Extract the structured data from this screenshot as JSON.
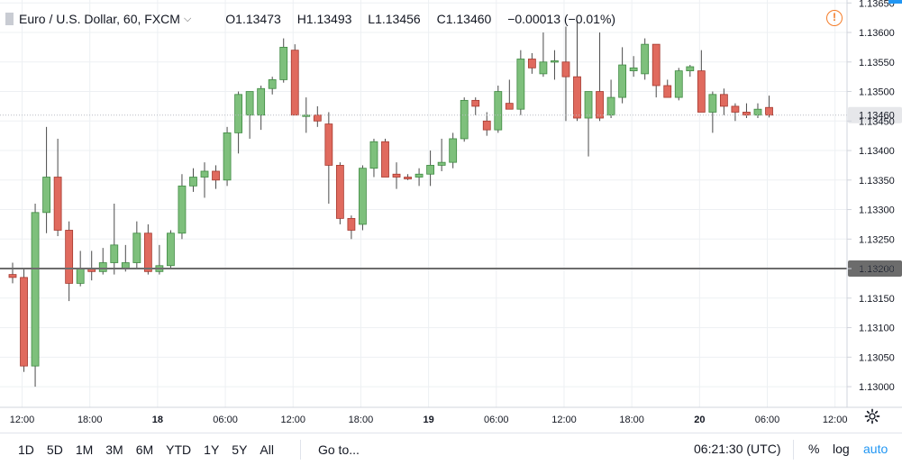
{
  "header": {
    "symbol": "Euro / U.S. Dollar, 60, FXCM",
    "open": "O1.13473",
    "high": "H1.13493",
    "low": "L1.13456",
    "close": "C1.13460",
    "change": "−0.00013 (−0.01%)"
  },
  "bottom_bar": {
    "ranges": [
      "1D",
      "5D",
      "1M",
      "3M",
      "6M",
      "YTD",
      "1Y",
      "5Y",
      "All"
    ],
    "goto": "Go to...",
    "clock": "06:21:30 (UTC)",
    "percent": "%",
    "log": "log",
    "auto": "auto"
  },
  "colors": {
    "up": "#7ec07c",
    "down": "#e06a5e",
    "grid": "#edf0f3",
    "axis": "#d1d4dc",
    "hline": "#6c6c6c"
  },
  "chart_data": {
    "type": "candlestick",
    "ylim": [
      1.12965,
      1.13655
    ],
    "y_ticks": [
      "1.13650",
      "1.13600",
      "1.13550",
      "1.13500",
      "1.13450",
      "1.13400",
      "1.13350",
      "1.13300",
      "1.13250",
      "1.13200",
      "1.13150",
      "1.13100",
      "1.13050",
      "1.13000"
    ],
    "x_ticks": [
      "12:00",
      "18:00",
      "18",
      "06:00",
      "12:00",
      "18:00",
      "19",
      "06:00",
      "12:00",
      "18:00",
      "20",
      "06:00",
      "12:00"
    ],
    "current_price": "1.13460",
    "horizontal_line": "1.13200",
    "candles": [
      {
        "o": 1.1319,
        "h": 1.1321,
        "l": 1.13175,
        "c": 1.13185
      },
      {
        "o": 1.13185,
        "h": 1.132,
        "l": 1.13025,
        "c": 1.13035
      },
      {
        "o": 1.13035,
        "h": 1.1331,
        "l": 1.13,
        "c": 1.13295
      },
      {
        "o": 1.13295,
        "h": 1.1344,
        "l": 1.1326,
        "c": 1.13355
      },
      {
        "o": 1.13355,
        "h": 1.1342,
        "l": 1.13255,
        "c": 1.13265
      },
      {
        "o": 1.13265,
        "h": 1.1328,
        "l": 1.13145,
        "c": 1.13175
      },
      {
        "o": 1.13175,
        "h": 1.1323,
        "l": 1.1317,
        "c": 1.132
      },
      {
        "o": 1.132,
        "h": 1.1323,
        "l": 1.1318,
        "c": 1.13195
      },
      {
        "o": 1.13195,
        "h": 1.13235,
        "l": 1.1319,
        "c": 1.1321
      },
      {
        "o": 1.1321,
        "h": 1.1331,
        "l": 1.1319,
        "c": 1.1324
      },
      {
        "o": 1.132,
        "h": 1.1324,
        "l": 1.13195,
        "c": 1.1321
      },
      {
        "o": 1.1321,
        "h": 1.1328,
        "l": 1.132,
        "c": 1.1326
      },
      {
        "o": 1.1326,
        "h": 1.13275,
        "l": 1.1319,
        "c": 1.13195
      },
      {
        "o": 1.13195,
        "h": 1.1324,
        "l": 1.1319,
        "c": 1.13205
      },
      {
        "o": 1.13205,
        "h": 1.13265,
        "l": 1.132,
        "c": 1.1326
      },
      {
        "o": 1.1326,
        "h": 1.1336,
        "l": 1.1325,
        "c": 1.1334
      },
      {
        "o": 1.1334,
        "h": 1.1337,
        "l": 1.1333,
        "c": 1.13355
      },
      {
        "o": 1.13355,
        "h": 1.1338,
        "l": 1.1332,
        "c": 1.13365
      },
      {
        "o": 1.13365,
        "h": 1.13375,
        "l": 1.13335,
        "c": 1.1335
      },
      {
        "o": 1.1335,
        "h": 1.1344,
        "l": 1.1334,
        "c": 1.1343
      },
      {
        "o": 1.1343,
        "h": 1.135,
        "l": 1.13395,
        "c": 1.13495
      },
      {
        "o": 1.1346,
        "h": 1.135,
        "l": 1.1342,
        "c": 1.135
      },
      {
        "o": 1.1346,
        "h": 1.1351,
        "l": 1.13435,
        "c": 1.13505
      },
      {
        "o": 1.13505,
        "h": 1.13525,
        "l": 1.13495,
        "c": 1.1352
      },
      {
        "o": 1.1352,
        "h": 1.1359,
        "l": 1.13515,
        "c": 1.13575
      },
      {
        "o": 1.1357,
        "h": 1.1358,
        "l": 1.13465,
        "c": 1.1346
      },
      {
        "o": 1.1346,
        "h": 1.1349,
        "l": 1.1343,
        "c": 1.1346
      },
      {
        "o": 1.1346,
        "h": 1.13475,
        "l": 1.1344,
        "c": 1.1345
      },
      {
        "o": 1.13445,
        "h": 1.13465,
        "l": 1.1331,
        "c": 1.13375
      },
      {
        "o": 1.13375,
        "h": 1.1338,
        "l": 1.13275,
        "c": 1.13285
      },
      {
        "o": 1.13285,
        "h": 1.1329,
        "l": 1.1325,
        "c": 1.13265
      },
      {
        "o": 1.13275,
        "h": 1.13375,
        "l": 1.13265,
        "c": 1.1337
      },
      {
        "o": 1.1337,
        "h": 1.1342,
        "l": 1.13355,
        "c": 1.13415
      },
      {
        "o": 1.13415,
        "h": 1.1342,
        "l": 1.13355,
        "c": 1.13355
      },
      {
        "o": 1.1336,
        "h": 1.1338,
        "l": 1.13335,
        "c": 1.13355
      },
      {
        "o": 1.13355,
        "h": 1.1336,
        "l": 1.1335,
        "c": 1.13352
      },
      {
        "o": 1.13355,
        "h": 1.1337,
        "l": 1.1334,
        "c": 1.1336
      },
      {
        "o": 1.1336,
        "h": 1.134,
        "l": 1.1334,
        "c": 1.13375
      },
      {
        "o": 1.13375,
        "h": 1.1342,
        "l": 1.13365,
        "c": 1.1338
      },
      {
        "o": 1.1338,
        "h": 1.1343,
        "l": 1.1337,
        "c": 1.1342
      },
      {
        "o": 1.1342,
        "h": 1.1349,
        "l": 1.13415,
        "c": 1.13485
      },
      {
        "o": 1.13485,
        "h": 1.1349,
        "l": 1.1346,
        "c": 1.13475
      },
      {
        "o": 1.1345,
        "h": 1.13465,
        "l": 1.13425,
        "c": 1.13435
      },
      {
        "o": 1.13435,
        "h": 1.1351,
        "l": 1.1343,
        "c": 1.135
      },
      {
        "o": 1.1348,
        "h": 1.1352,
        "l": 1.1347,
        "c": 1.1347
      },
      {
        "o": 1.1347,
        "h": 1.1357,
        "l": 1.1346,
        "c": 1.13555
      },
      {
        "o": 1.13555,
        "h": 1.13565,
        "l": 1.1353,
        "c": 1.1354
      },
      {
        "o": 1.1353,
        "h": 1.136,
        "l": 1.13525,
        "c": 1.1355
      },
      {
        "o": 1.1355,
        "h": 1.1357,
        "l": 1.1352,
        "c": 1.13552
      },
      {
        "o": 1.1355,
        "h": 1.1361,
        "l": 1.1345,
        "c": 1.13525
      },
      {
        "o": 1.13525,
        "h": 1.1362,
        "l": 1.1345,
        "c": 1.13455
      },
      {
        "o": 1.13455,
        "h": 1.135,
        "l": 1.1339,
        "c": 1.135
      },
      {
        "o": 1.135,
        "h": 1.136,
        "l": 1.1345,
        "c": 1.13455
      },
      {
        "o": 1.1346,
        "h": 1.1352,
        "l": 1.13455,
        "c": 1.1349
      },
      {
        "o": 1.1349,
        "h": 1.13575,
        "l": 1.1348,
        "c": 1.13545
      },
      {
        "o": 1.13535,
        "h": 1.1356,
        "l": 1.13525,
        "c": 1.1354
      },
      {
        "o": 1.1353,
        "h": 1.1359,
        "l": 1.1352,
        "c": 1.1358
      },
      {
        "o": 1.1358,
        "h": 1.1358,
        "l": 1.1349,
        "c": 1.1351
      },
      {
        "o": 1.1351,
        "h": 1.1352,
        "l": 1.1349,
        "c": 1.1349
      },
      {
        "o": 1.1349,
        "h": 1.1354,
        "l": 1.13485,
        "c": 1.13535
      },
      {
        "o": 1.13535,
        "h": 1.13545,
        "l": 1.13525,
        "c": 1.13542
      },
      {
        "o": 1.13535,
        "h": 1.1357,
        "l": 1.13465,
        "c": 1.13465
      },
      {
        "o": 1.13465,
        "h": 1.135,
        "l": 1.1343,
        "c": 1.13495
      },
      {
        "o": 1.13495,
        "h": 1.13505,
        "l": 1.1346,
        "c": 1.13475
      },
      {
        "o": 1.13475,
        "h": 1.1348,
        "l": 1.1345,
        "c": 1.13465
      },
      {
        "o": 1.13465,
        "h": 1.1348,
        "l": 1.13455,
        "c": 1.1346
      },
      {
        "o": 1.1346,
        "h": 1.1348,
        "l": 1.13455,
        "c": 1.1347
      },
      {
        "o": 1.13473,
        "h": 1.13493,
        "l": 1.13456,
        "c": 1.1346
      }
    ]
  }
}
